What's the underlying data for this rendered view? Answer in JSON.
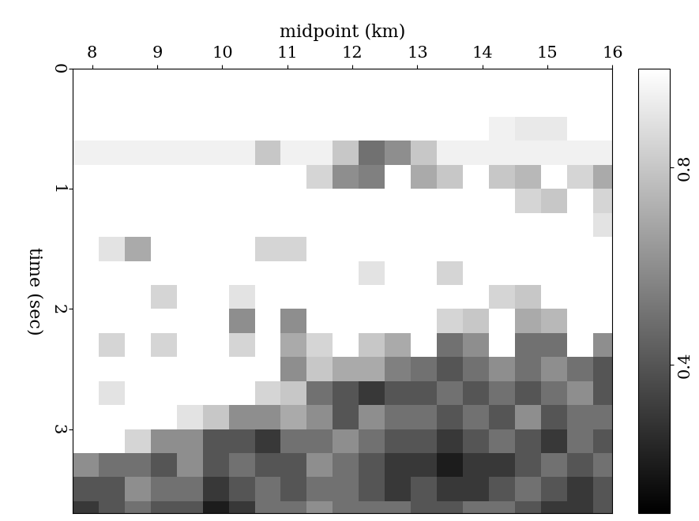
{
  "chart_data": {
    "type": "heatmap",
    "x_label": "midpoint (km)",
    "y_label": "time (sec)",
    "xlim": [
      7.7,
      16.0
    ],
    "ylim": [
      3.7,
      0
    ],
    "xticks": [
      8,
      9,
      10,
      11,
      12,
      13,
      14,
      15,
      16
    ],
    "yticks": [
      0,
      1,
      2,
      3
    ],
    "x_edges": [
      7.7,
      8.1,
      8.5,
      8.9,
      9.3,
      9.7,
      10.1,
      10.5,
      10.9,
      11.3,
      11.7,
      12.1,
      12.5,
      12.9,
      13.3,
      13.7,
      14.1,
      14.5,
      14.9,
      15.3,
      15.7,
      16.1
    ],
    "y_edges": [
      0,
      0.2,
      0.4,
      0.6,
      0.8,
      1.0,
      1.2,
      1.4,
      1.6,
      1.8,
      2.0,
      2.2,
      2.4,
      2.6,
      2.8,
      3.0,
      3.2,
      3.4,
      3.6,
      3.8
    ],
    "cells": [
      [
        1,
        1,
        1,
        1,
        1,
        1,
        1,
        1,
        1,
        1,
        1,
        1,
        1,
        1,
        1,
        1,
        1,
        1,
        1,
        1,
        1
      ],
      [
        1,
        1,
        1,
        1,
        1,
        1,
        1,
        1,
        1,
        1,
        1,
        1,
        1,
        1,
        1,
        1,
        1,
        1,
        1,
        1,
        1
      ],
      [
        1,
        1,
        1,
        1,
        1,
        1,
        1,
        1,
        1,
        1,
        1,
        1,
        1,
        1,
        1,
        1,
        0.95,
        0.92,
        0.92,
        1,
        1
      ],
      [
        0.95,
        0.95,
        0.95,
        0.95,
        0.95,
        0.95,
        0.95,
        0.8,
        0.95,
        0.95,
        0.8,
        0.5,
        0.6,
        0.8,
        0.95,
        0.95,
        0.95,
        0.95,
        0.95,
        0.95,
        0.95
      ],
      [
        1,
        1,
        1,
        1,
        1,
        1,
        1,
        1,
        1,
        0.85,
        0.6,
        0.55,
        1,
        0.7,
        0.8,
        1,
        0.8,
        0.75,
        1,
        0.85,
        0.7
      ],
      [
        1,
        1,
        1,
        1,
        1,
        1,
        1,
        1,
        1,
        1,
        1,
        1,
        1,
        1,
        1,
        1,
        1,
        0.85,
        0.8,
        1,
        0.85
      ],
      [
        1,
        1,
        1,
        1,
        1,
        1,
        1,
        1,
        1,
        1,
        1,
        1,
        1,
        1,
        1,
        1,
        1,
        1,
        1,
        1,
        0.9
      ],
      [
        1,
        0.9,
        0.7,
        1,
        1,
        1,
        1,
        0.85,
        0.85,
        1,
        1,
        1,
        1,
        1,
        1,
        1,
        1,
        1,
        1,
        1,
        1
      ],
      [
        1,
        1,
        1,
        1,
        1,
        1,
        1,
        1,
        1,
        1,
        1,
        0.9,
        1,
        1,
        0.85,
        1,
        1,
        1,
        1,
        1,
        1
      ],
      [
        1,
        1,
        1,
        0.85,
        1,
        1,
        0.9,
        1,
        1,
        1,
        1,
        1,
        1,
        1,
        1,
        1,
        0.85,
        0.8,
        1,
        1,
        1
      ],
      [
        1,
        1,
        1,
        1,
        1,
        1,
        0.6,
        1,
        0.6,
        1,
        1,
        1,
        1,
        1,
        0.85,
        0.8,
        1,
        0.7,
        0.75,
        1,
        1
      ],
      [
        1,
        0.85,
        1,
        0.85,
        1,
        1,
        0.85,
        1,
        0.7,
        0.85,
        1,
        0.8,
        0.7,
        1,
        0.5,
        0.6,
        1,
        0.5,
        0.5,
        1,
        0.6
      ],
      [
        1,
        1,
        1,
        1,
        1,
        1,
        1,
        1,
        0.6,
        0.8,
        0.7,
        0.7,
        0.55,
        0.5,
        0.4,
        0.5,
        0.6,
        0.5,
        0.6,
        0.5,
        0.4
      ],
      [
        1,
        0.9,
        1,
        1,
        1,
        1,
        1,
        0.85,
        0.8,
        0.5,
        0.4,
        0.3,
        0.4,
        0.4,
        0.5,
        0.4,
        0.5,
        0.4,
        0.5,
        0.6,
        0.4
      ],
      [
        1,
        1,
        1,
        1,
        0.9,
        0.8,
        0.6,
        0.6,
        0.7,
        0.6,
        0.4,
        0.6,
        0.5,
        0.5,
        0.4,
        0.5,
        0.4,
        0.6,
        0.4,
        0.5,
        0.5
      ],
      [
        1,
        1,
        0.85,
        0.6,
        0.6,
        0.4,
        0.4,
        0.3,
        0.5,
        0.5,
        0.6,
        0.5,
        0.4,
        0.4,
        0.3,
        0.4,
        0.5,
        0.4,
        0.3,
        0.5,
        0.4
      ],
      [
        0.6,
        0.5,
        0.5,
        0.4,
        0.6,
        0.4,
        0.5,
        0.4,
        0.4,
        0.6,
        0.5,
        0.4,
        0.3,
        0.3,
        0.2,
        0.3,
        0.3,
        0.4,
        0.5,
        0.4,
        0.5
      ],
      [
        0.4,
        0.4,
        0.6,
        0.5,
        0.5,
        0.3,
        0.4,
        0.5,
        0.4,
        0.5,
        0.5,
        0.4,
        0.3,
        0.4,
        0.3,
        0.3,
        0.4,
        0.5,
        0.4,
        0.3,
        0.4
      ],
      [
        0.3,
        0.4,
        0.5,
        0.4,
        0.4,
        0.2,
        0.3,
        0.5,
        0.5,
        0.6,
        0.5,
        0.5,
        0.5,
        0.4,
        0.4,
        0.5,
        0.5,
        0.4,
        0.3,
        0.3,
        0.4
      ]
    ],
    "colorbar": {
      "range": [
        0.1,
        1.0
      ],
      "ticks": [
        0.4,
        0.8
      ]
    }
  }
}
